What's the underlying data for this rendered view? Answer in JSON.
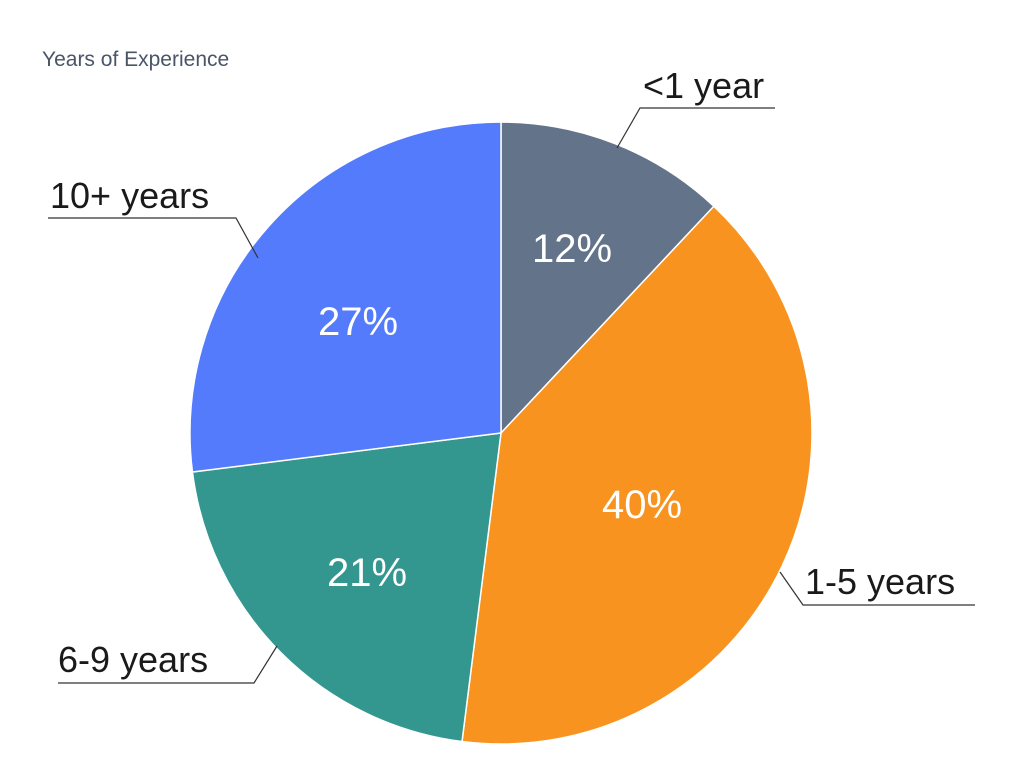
{
  "chart_data": {
    "type": "pie",
    "title": "Years of Experience",
    "categories": [
      "<1 year",
      "1-5 years",
      "6-9 years",
      "10+ years"
    ],
    "values": [
      12,
      40,
      21,
      27
    ],
    "data_labels": [
      "12%",
      "40%",
      "21%",
      "27%"
    ],
    "colors": [
      "#637389",
      "#F7931E",
      "#33978F",
      "#557BFD"
    ],
    "start": "12 o'clock",
    "direction": "clockwise",
    "legend": "none"
  }
}
